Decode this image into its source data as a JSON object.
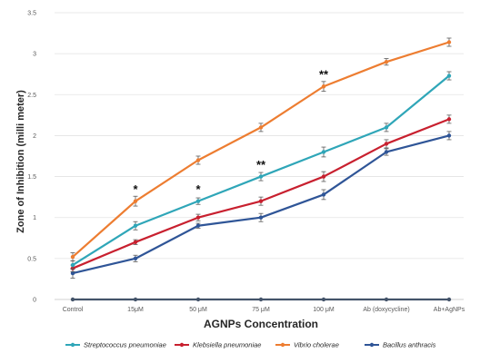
{
  "chart_data": {
    "type": "line",
    "xlabel": "AGNPs Concentration",
    "ylabel": "Zone of Inhibition (milli meter)",
    "categories": [
      "Control",
      "15μM",
      "50 μM",
      "75 μM",
      "100 μM",
      "Ab (doxycycline)",
      "Ab+AgNPs"
    ],
    "ylim": [
      0,
      3.5
    ],
    "yticks": [
      "0",
      "0.5",
      "1",
      "1.5",
      "2",
      "2.5",
      "3",
      "3.5"
    ],
    "grid": true,
    "legend_position": "bottom",
    "series": [
      {
        "name": "Streptococcus pneumoniae",
        "color": "#2fa6b8",
        "values": [
          0.42,
          0.9,
          1.2,
          1.5,
          1.8,
          2.1,
          2.73
        ],
        "errors": [
          0.05,
          0.05,
          0.04,
          0.05,
          0.06,
          0.05,
          0.05
        ]
      },
      {
        "name": "Klebsiella pneumoniae",
        "color": "#c8202f",
        "values": [
          0.38,
          0.7,
          1.0,
          1.2,
          1.5,
          1.9,
          2.2
        ],
        "errors": [
          0.04,
          0.03,
          0.04,
          0.05,
          0.06,
          0.05,
          0.05
        ]
      },
      {
        "name": "Vibrio cholerae",
        "color": "#ed7d31",
        "values": [
          0.52,
          1.2,
          1.7,
          2.1,
          2.6,
          2.9,
          3.14
        ],
        "errors": [
          0.05,
          0.06,
          0.05,
          0.05,
          0.06,
          0.04,
          0.05
        ]
      },
      {
        "name": "Bacillus anthracis",
        "color": "#2f5597",
        "values": [
          0.32,
          0.5,
          0.9,
          1.0,
          1.28,
          1.8,
          2.0
        ],
        "errors": [
          0.06,
          0.04,
          0.03,
          0.05,
          0.06,
          0.04,
          0.05
        ]
      },
      {
        "name": "",
        "color": "#44546a",
        "values": [
          0,
          0,
          0,
          0,
          0,
          0,
          0
        ],
        "errors": [
          0,
          0,
          0,
          0,
          0,
          0,
          0
        ]
      }
    ],
    "annotations": [
      {
        "text": "*",
        "x": "15μM",
        "y": 1.34
      },
      {
        "text": "*",
        "x": "50 μM",
        "y": 1.34
      },
      {
        "text": "**",
        "x": "75 μM",
        "y": 1.64
      },
      {
        "text": "**",
        "x": "100 μM",
        "y": 2.74
      }
    ]
  }
}
